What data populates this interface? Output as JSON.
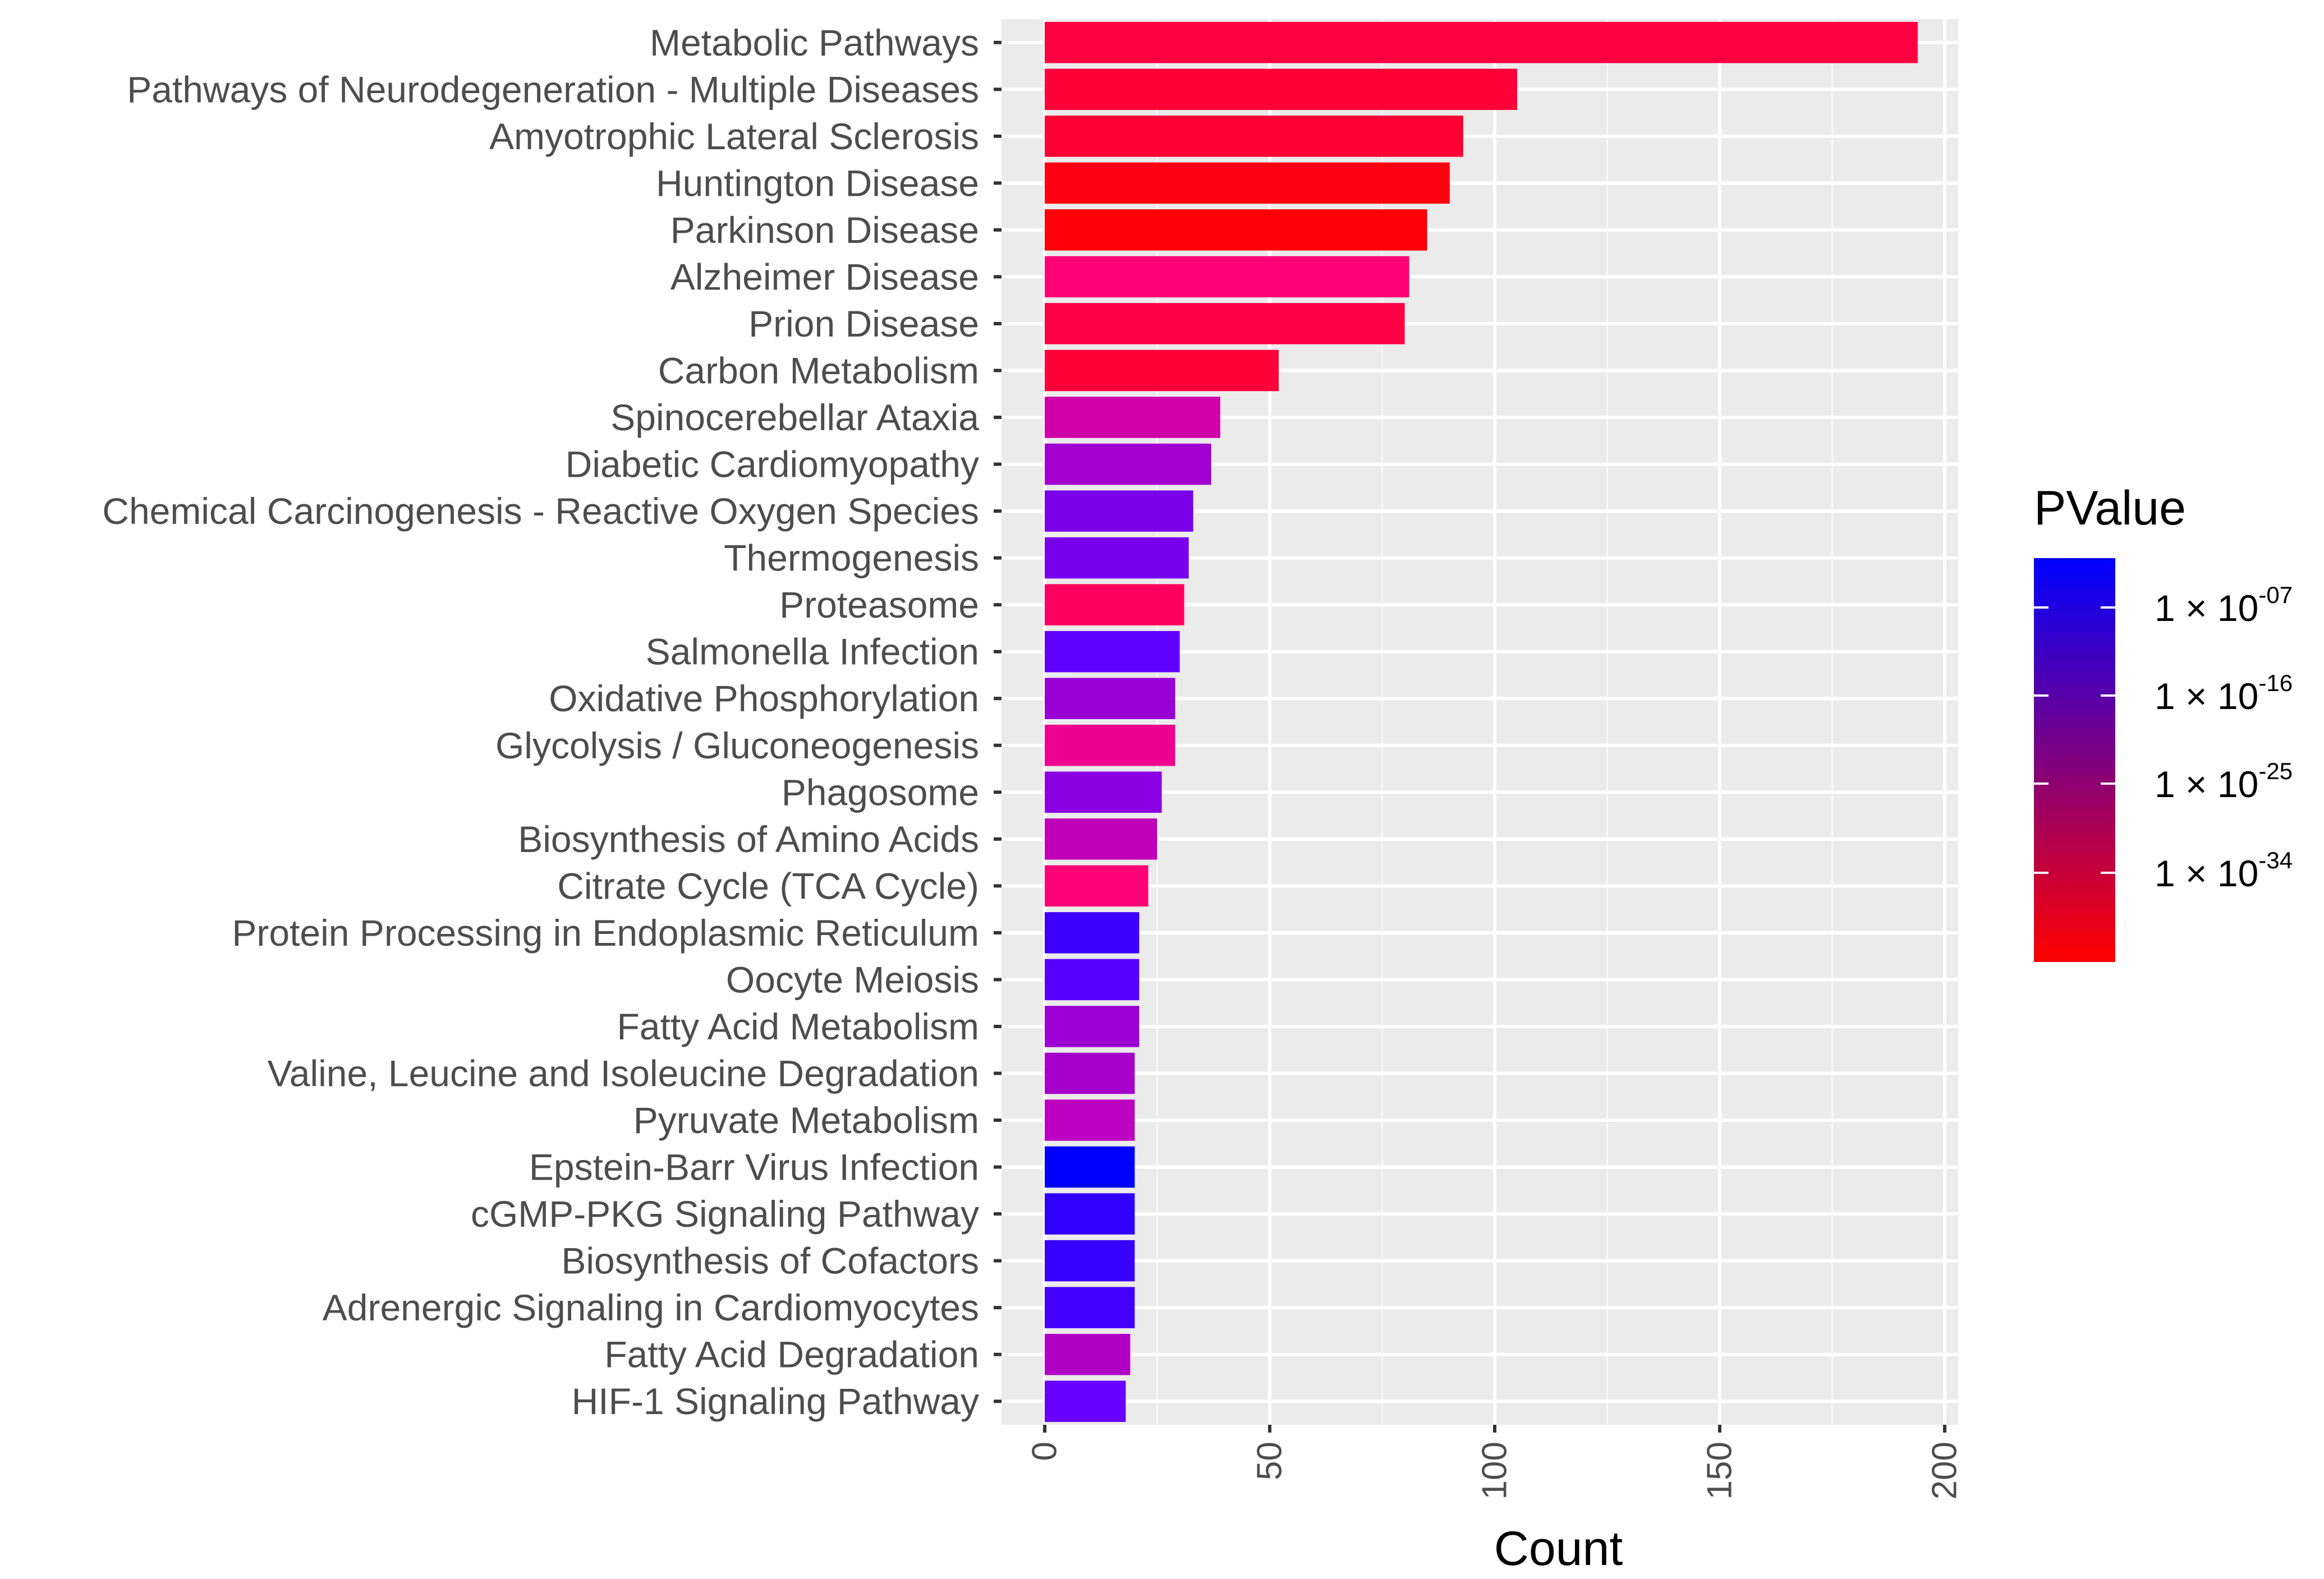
{
  "chart_data": {
    "type": "bar",
    "orientation": "horizontal",
    "title": "",
    "xlabel": "Count",
    "ylabel": "",
    "xlim": [
      0,
      202
    ],
    "xticks": [
      0,
      50,
      100,
      150,
      200
    ],
    "grid": true,
    "legend": {
      "title": "PValue",
      "placement": "right",
      "kind": "continuous-colorbar",
      "high_color": "#0000ff",
      "low_color": "#ff0000",
      "tick_exponents": [
        "-07",
        "-16",
        "-25",
        "-34"
      ],
      "tick_base": "1 × 10"
    },
    "categories": [
      "Metabolic Pathways",
      "Pathways of Neurodegeneration - Multiple Diseases",
      "Amyotrophic Lateral Sclerosis",
      "Huntington Disease",
      "Parkinson Disease",
      "Alzheimer Disease",
      "Prion Disease",
      "Carbon Metabolism",
      "Spinocerebellar Ataxia",
      "Diabetic Cardiomyopathy",
      "Chemical Carcinogenesis - Reactive Oxygen Species",
      "Thermogenesis",
      "Proteasome",
      "Salmonella Infection",
      "Oxidative Phosphorylation",
      "Glycolysis / Gluconeogenesis",
      "Phagosome",
      "Biosynthesis of Amino Acids",
      "Citrate Cycle (TCA Cycle)",
      "Protein Processing in Endoplasmic Reticulum",
      "Oocyte Meiosis",
      "Fatty Acid Metabolism",
      "Valine, Leucine and Isoleucine Degradation",
      "Pyruvate Metabolism",
      "Epstein-Barr Virus Infection",
      "cGMP-PKG Signaling Pathway",
      "Biosynthesis of Cofactors",
      "Adrenergic Signaling in Cardiomyocytes",
      "Fatty Acid Degradation",
      "HIF-1 Signaling Pathway"
    ],
    "values": [
      194,
      105,
      93,
      90,
      85,
      81,
      80,
      52,
      39,
      37,
      33,
      32,
      31,
      30,
      29,
      29,
      26,
      25,
      23,
      21,
      21,
      21,
      20,
      20,
      20,
      20,
      20,
      20,
      19,
      18
    ],
    "bar_colors": [
      "#ff0040",
      "#ff0038",
      "#ff0035",
      "#ff0010",
      "#ff0008",
      "#ff0075",
      "#ff0045",
      "#ff0038",
      "#d000a8",
      "#a200d0",
      "#7a00ea",
      "#7800ec",
      "#ff0060",
      "#6000ff",
      "#9800d4",
      "#ee0090",
      "#8a00e2",
      "#c000b8",
      "#ff0078",
      "#3c00ff",
      "#5800ff",
      "#9d00d4",
      "#a600ca",
      "#bc00c0",
      "#0000ff",
      "#3000ff",
      "#3800ff",
      "#4400ff",
      "#b000c6",
      "#6600ff"
    ]
  }
}
